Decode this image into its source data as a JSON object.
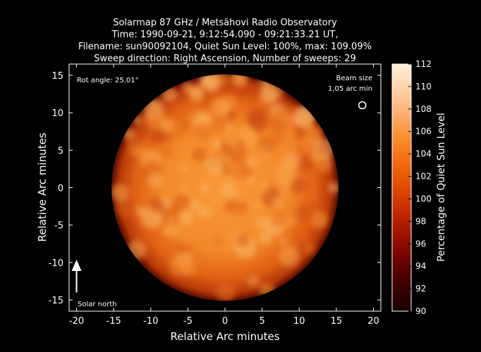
{
  "chart_data": {
    "type": "heatmap",
    "title_lines": [
      "Solarmap 87 GHz / Metsähovi Radio Observatory",
      "Time: 1990-09-21,  9:12:54.090 - 09:21:33.21 UT,",
      "Filename: sun90092104, Quiet Sun Level: 100%, max: 109.09%",
      "Sweep direction: Right Ascension, Number of sweeps: 29"
    ],
    "xlabel": "Relative Arc minutes",
    "ylabel": "Relative Arc minutes",
    "xlim": [
      -21,
      21
    ],
    "ylim": [
      -16.5,
      16.5
    ],
    "xticks": [
      -20,
      -15,
      -10,
      -5,
      0,
      5,
      10,
      15,
      20
    ],
    "yticks": [
      -15,
      -10,
      -5,
      0,
      5,
      10,
      15
    ],
    "colorbar": {
      "label": "Percentage of Quiet Sun Level",
      "min": 90,
      "max": 112,
      "ticks": [
        90,
        92,
        94,
        96,
        98,
        100,
        102,
        104,
        106,
        108,
        110,
        112
      ],
      "colors": [
        "#1a0000",
        "#3a0000",
        "#6a0000",
        "#9a1000",
        "#c42a00",
        "#e04a00",
        "#f46a10",
        "#fb8c2e",
        "#fdb070",
        "#ffd2a8",
        "#ffeedd"
      ]
    },
    "disk": {
      "center": [
        0,
        0
      ],
      "radius_arcmin": 15.2,
      "quiet_level": 100,
      "max_level": 109.09
    },
    "annotations": {
      "rot_angle": "Rot angle: 25.01°",
      "beam_size_line1": "Beam size",
      "beam_size_line2": "1,05 arc min",
      "beam_position": [
        18.5,
        11
      ],
      "solar_north": "Solar north",
      "north_arrow": {
        "x": -20,
        "y_from": -14,
        "y_to": -10
      }
    },
    "grid": false
  }
}
